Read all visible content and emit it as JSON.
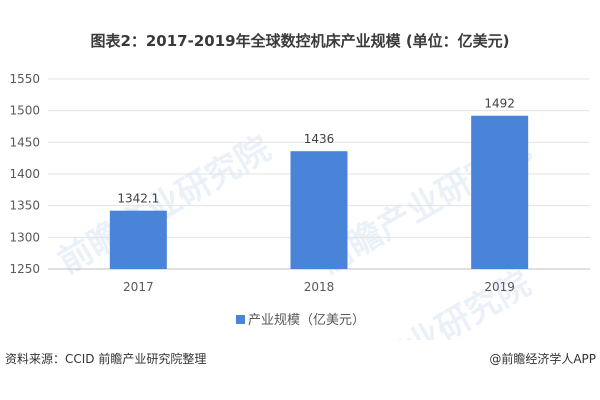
{
  "title": "图表2：2017-2019年全球数控机床产业规模 (单位：亿美元)",
  "chart_data": {
    "type": "bar",
    "categories": [
      "2017",
      "2018",
      "2019"
    ],
    "series": [
      {
        "name": "产业规模（亿美元）",
        "values": [
          1342.1,
          1436,
          1492
        ],
        "labels": [
          "1342.1",
          "1436",
          "1492"
        ]
      }
    ],
    "ylim": [
      1250,
      1550
    ],
    "yticks": [
      1250,
      1300,
      1350,
      1400,
      1450,
      1500,
      1550
    ],
    "grid": true,
    "legend": "bottom",
    "bar_color": "#4a84d8"
  },
  "footer": {
    "source": "资料来源：CCID 前瞻产业研究院整理",
    "brand": "@前瞻经济学人APP"
  },
  "watermark": "前瞻产业研究院"
}
